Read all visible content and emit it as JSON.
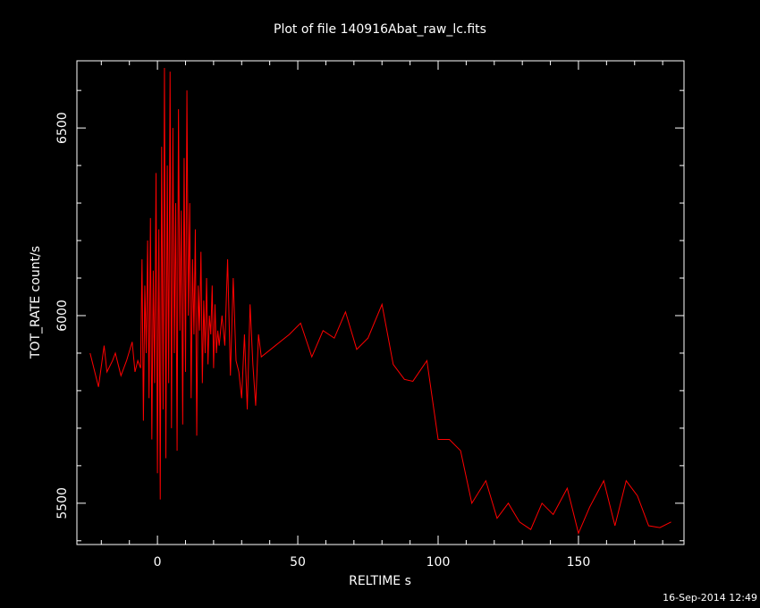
{
  "chart_data": {
    "type": "line",
    "title": "Plot of file 140916Abat_raw_lc.fits",
    "xlabel": "RELTIME  s",
    "ylabel": "TOT_RATE  count/s",
    "timestamp": "16-Sep-2014 12:49",
    "xlim": [
      -28.7,
      187.6
    ],
    "ylim": [
      5390,
      6679
    ],
    "xticks": [
      0,
      50,
      100,
      150
    ],
    "yticks": [
      5500,
      6000,
      6500
    ],
    "xminorticks": [
      -20,
      -10,
      10,
      20,
      30,
      40,
      60,
      70,
      80,
      90,
      110,
      120,
      130,
      140,
      160,
      170,
      180
    ],
    "yminorticks": [
      5400,
      5600,
      5700,
      5800,
      5900,
      6100,
      6200,
      6300,
      6400,
      6600
    ],
    "series": [
      {
        "color": "#ff0000",
        "x": [
          -24,
          -23,
          -21,
          -19,
          -18,
          -16,
          -15,
          -13,
          -11,
          -9,
          -8,
          -7,
          -6,
          -5.5,
          -5,
          -4.5,
          -4,
          -3.5,
          -3,
          -2.5,
          -2,
          -1.5,
          -1,
          -0.5,
          0,
          0.5,
          1,
          1.5,
          2,
          2.5,
          3,
          3.5,
          4,
          4.5,
          5,
          5.5,
          6,
          6.5,
          7,
          7.5,
          8,
          8.5,
          9,
          9.5,
          10,
          10.5,
          11,
          11.5,
          12,
          12.5,
          13,
          13.5,
          14,
          14.5,
          15,
          15.5,
          16,
          16.5,
          17,
          17.5,
          18,
          18.5,
          19,
          19.5,
          20,
          20.5,
          21,
          21.5,
          22,
          23,
          24,
          25,
          26,
          27,
          28,
          29,
          30,
          31,
          32,
          33,
          34,
          35,
          36,
          37,
          42,
          47,
          51,
          55,
          59,
          63,
          67,
          71,
          75,
          80,
          84,
          88,
          91,
          96,
          100,
          104,
          108,
          112,
          117,
          121,
          125,
          129,
          133,
          137,
          141,
          146,
          150,
          154,
          159,
          163,
          167,
          171,
          175,
          179,
          183
        ],
        "values": [
          5900,
          5870,
          5810,
          5920,
          5850,
          5880,
          5900,
          5840,
          5880,
          5930,
          5850,
          5880,
          5860,
          6150,
          5720,
          6080,
          5900,
          6200,
          5780,
          6260,
          5670,
          6120,
          5820,
          6380,
          5580,
          6230,
          5510,
          6450,
          5750,
          6660,
          5620,
          6400,
          5820,
          6650,
          5700,
          6500,
          5900,
          6300,
          5640,
          6550,
          5960,
          6280,
          5710,
          6420,
          5850,
          6600,
          6000,
          6300,
          5780,
          6150,
          5950,
          6230,
          5680,
          6080,
          5960,
          6170,
          5820,
          6040,
          5900,
          6100,
          5870,
          6000,
          5950,
          6080,
          5860,
          6030,
          5900,
          5960,
          5920,
          6000,
          5920,
          6150,
          5840,
          6100,
          5880,
          5850,
          5780,
          5950,
          5750,
          6030,
          5870,
          5760,
          5950,
          5890,
          5920,
          5950,
          5980,
          5890,
          5960,
          5940,
          6010,
          5910,
          5940,
          6030,
          5870,
          5830,
          5825,
          5880,
          5670,
          5670,
          5640,
          5500,
          5560,
          5460,
          5500,
          5450,
          5430,
          5500,
          5470,
          5540,
          5420,
          5490,
          5560,
          5440,
          5560,
          5520,
          5440,
          5435,
          5450
        ]
      }
    ]
  }
}
